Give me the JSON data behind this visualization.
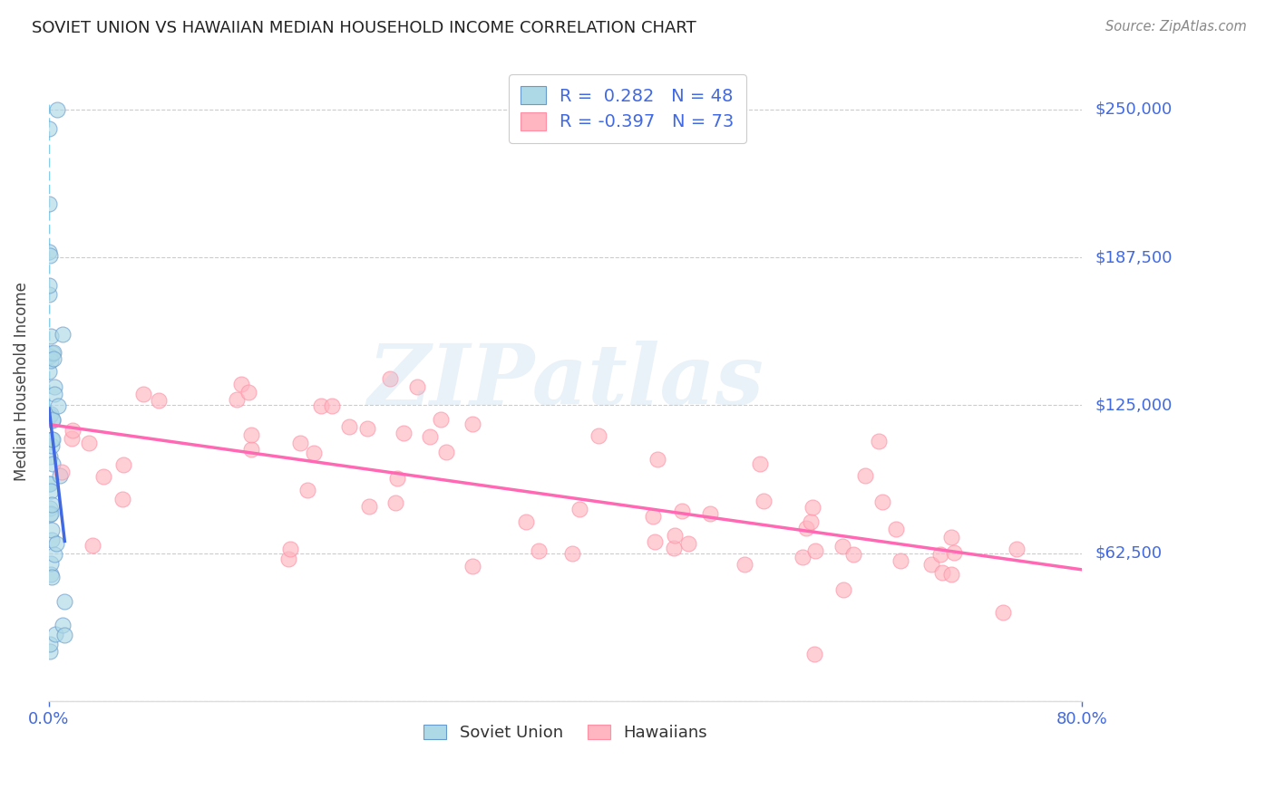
{
  "title": "SOVIET UNION VS HAWAIIAN MEDIAN HOUSEHOLD INCOME CORRELATION CHART",
  "source": "Source: ZipAtlas.com",
  "ylabel": "Median Household Income",
  "yticks": [
    0,
    62500,
    125000,
    187500,
    250000
  ],
  "ytick_labels": [
    "",
    "$62,500",
    "$125,000",
    "$187,500",
    "$250,000"
  ],
  "xmin": 0.0,
  "xmax": 80.0,
  "ymin": 0,
  "ymax": 270000,
  "r_soviet": 0.282,
  "n_soviet": 48,
  "r_hawaiian": -0.397,
  "n_hawaiian": 73,
  "color_soviet_fill": "#ADD8E6",
  "color_soviet_edge": "#6699CC",
  "color_hawaiian_fill": "#FFB6C1",
  "color_hawaiian_edge": "#FF8FA3",
  "color_soviet_line": "#4169E1",
  "color_hawaiian_line": "#FF69B4",
  "color_blue_label": "#4169E1",
  "color_dark_label": "#333333",
  "watermark": "ZIPatlas",
  "grid_color": "#CCCCCC",
  "legend_r_soviet": "R =  0.282   N = 48",
  "legend_r_hawaiian": "R = -0.397   N = 73",
  "legend_soviet_label": "Soviet Union",
  "legend_hawaiian_label": "Hawaiians"
}
